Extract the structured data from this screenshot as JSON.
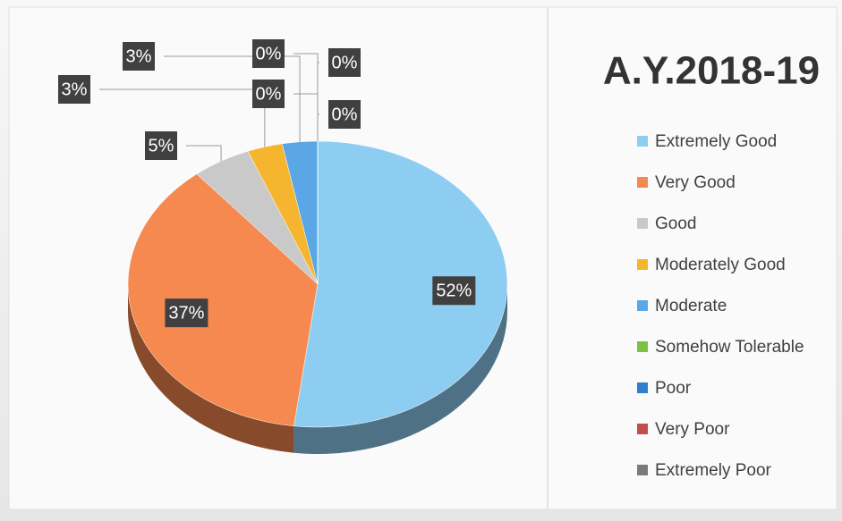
{
  "chart_data": {
    "type": "pie",
    "title": "A.Y.2018-19",
    "categories": [
      "Extremely Good",
      "Very Good",
      "Good",
      "Moderately Good",
      "Moderate",
      "Somehow Tolerable",
      "Poor",
      "Very Poor",
      "Extremely Poor"
    ],
    "values": [
      52,
      37,
      5,
      3,
      3,
      0,
      0,
      0,
      0
    ],
    "value_labels": [
      "52%",
      "37%",
      "5%",
      "3%",
      "3%",
      "0%",
      "0%",
      "0%",
      "0%"
    ],
    "colors": [
      "#8ecdf2",
      "#f5894f",
      "#c9c9c9",
      "#f6b52f",
      "#5ba7e5",
      "#7bc143",
      "#2f7fd0",
      "#c0504d",
      "#7a7a7a"
    ],
    "legend": "right"
  }
}
